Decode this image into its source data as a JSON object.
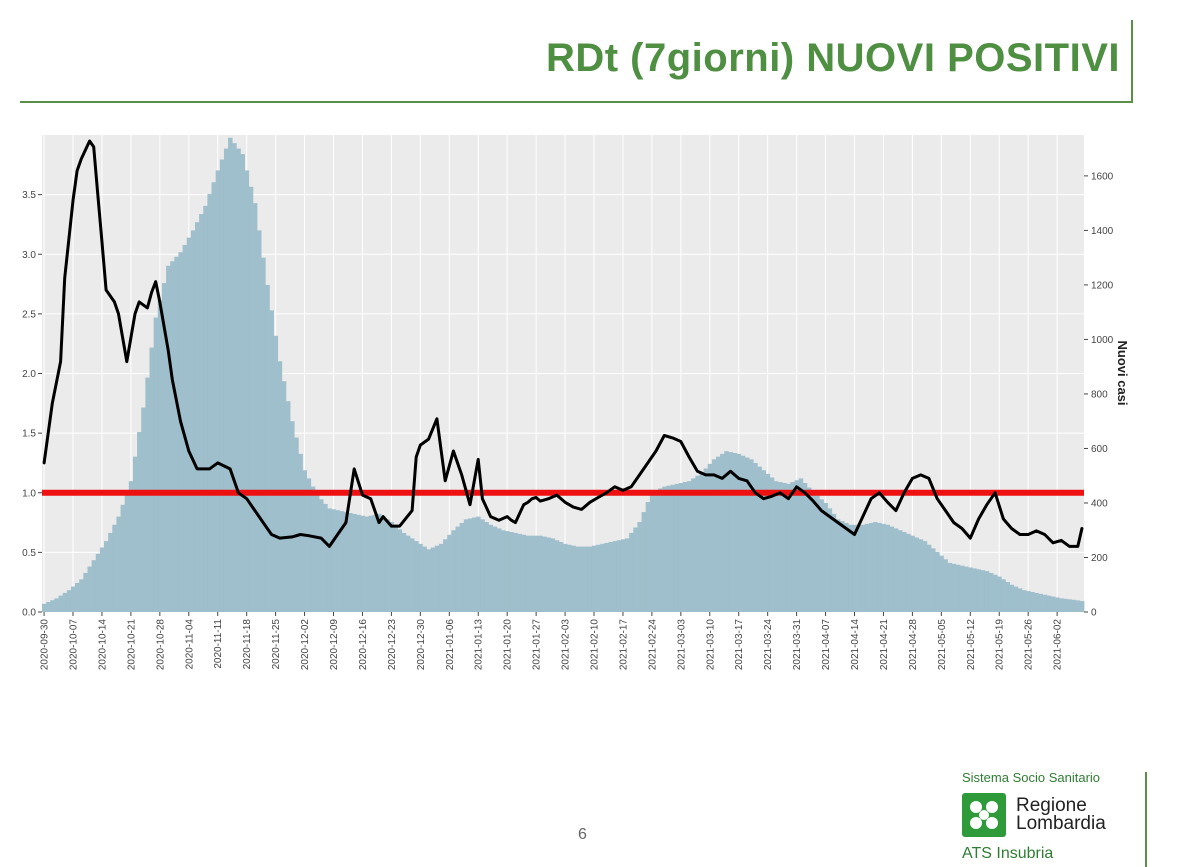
{
  "slide": {
    "title": "RDt (7giorni) NUOVI POSITIVI",
    "page_number": "6"
  },
  "branding": {
    "system": "Sistema Socio Sanitario",
    "region_line1": "Regione",
    "region_line2": "Lombardia",
    "agency": "ATS Insubria"
  },
  "colors": {
    "title": "#4e8f42",
    "bars": "#9ebfcb",
    "plot_bg": "#ebebeb",
    "line": "#000000",
    "threshold": "#ee1111"
  },
  "chart_data": {
    "type": "bar+line",
    "title": "",
    "xlabel": "",
    "ylabel_left": "",
    "ylabel_right": "Nuovi casi",
    "x_tick_labels": [
      "2020-09-30",
      "2020-10-07",
      "2020-10-14",
      "2020-10-21",
      "2020-10-28",
      "2020-11-04",
      "2020-11-11",
      "2020-11-18",
      "2020-11-25",
      "2020-12-02",
      "2020-12-09",
      "2020-12-16",
      "2020-12-23",
      "2020-12-30",
      "2021-01-06",
      "2021-01-13",
      "2021-01-20",
      "2021-01-27",
      "2021-02-03",
      "2021-02-10",
      "2021-02-17",
      "2021-02-24",
      "2021-03-03",
      "2021-03-10",
      "2021-03-17",
      "2021-03-24",
      "2021-03-31",
      "2021-04-07",
      "2021-04-14",
      "2021-04-21",
      "2021-04-28",
      "2021-05-05",
      "2021-05-12",
      "2021-05-19",
      "2021-05-26",
      "2021-06-02"
    ],
    "x_start": "2020-09-30",
    "ylim_left": [
      0,
      4
    ],
    "left_ticks": [
      "0.0",
      "0.5",
      "1.0",
      "1.5",
      "2.0",
      "2.5",
      "3.0",
      "3.5"
    ],
    "ylim_right": [
      0,
      1750
    ],
    "right_ticks": [
      "0",
      "200",
      "400",
      "600",
      "800",
      "1000",
      "1200",
      "1400",
      "1600"
    ],
    "threshold": 1.0,
    "grid": true,
    "new_cases_series": {
      "name": "Nuovi casi",
      "axis": "right",
      "days": [
        0,
        3,
        6,
        9,
        12,
        15,
        18,
        21,
        24,
        27,
        30,
        33,
        36,
        39,
        42,
        45,
        48,
        51,
        54,
        57,
        60,
        63,
        66,
        69,
        72,
        75,
        78,
        81,
        84,
        87,
        90,
        93,
        96,
        99,
        102,
        105,
        108,
        111,
        114,
        117,
        120,
        123,
        126,
        129,
        132,
        135,
        138,
        141,
        144,
        147,
        150,
        153,
        156,
        159,
        162,
        165,
        168,
        171,
        174,
        177,
        180,
        183,
        186,
        189,
        192,
        195,
        198,
        201,
        204,
        207,
        210,
        213,
        216,
        219,
        222,
        225,
        228,
        231,
        234,
        237,
        240,
        243,
        246,
        249,
        251
      ],
      "values": [
        30,
        50,
        80,
        120,
        190,
        260,
        350,
        480,
        750,
        1080,
        1270,
        1320,
        1400,
        1490,
        1620,
        1740,
        1680,
        1500,
        1200,
        920,
        700,
        520,
        430,
        380,
        370,
        360,
        350,
        360,
        330,
        290,
        260,
        230,
        250,
        300,
        340,
        350,
        320,
        300,
        290,
        280,
        280,
        270,
        250,
        240,
        240,
        250,
        260,
        270,
        330,
        440,
        460,
        470,
        480,
        510,
        560,
        590,
        580,
        560,
        520,
        480,
        470,
        490,
        440,
        400,
        340,
        320,
        320,
        330,
        320,
        300,
        280,
        260,
        220,
        180,
        170,
        160,
        150,
        130,
        100,
        80,
        70,
        60,
        50,
        45,
        40
      ]
    },
    "rt_series": {
      "name": "RDt (7giorni)",
      "axis": "left",
      "days": [
        0,
        2,
        4,
        5,
        7,
        8,
        9,
        11,
        12,
        13,
        14,
        15,
        17,
        18,
        20,
        21,
        22,
        23,
        25,
        26,
        27,
        28,
        30,
        31,
        33,
        35,
        37,
        40,
        42,
        45,
        47,
        49,
        51,
        53,
        55,
        57,
        60,
        62,
        64,
        67,
        69,
        71,
        73,
        75,
        77,
        79,
        81,
        82,
        84,
        86,
        89,
        90,
        91,
        93,
        95,
        97,
        99,
        101,
        103,
        105,
        106,
        108,
        110,
        112,
        113,
        114,
        116,
        117,
        118,
        119,
        120,
        121,
        122,
        124,
        126,
        127,
        128,
        130,
        132,
        134,
        136,
        138,
        140,
        142,
        144,
        146,
        148,
        150,
        152,
        154,
        156,
        158,
        160,
        162,
        164,
        166,
        168,
        170,
        172,
        174,
        176,
        178,
        180,
        182,
        184,
        186,
        188,
        190,
        192,
        194,
        196,
        198,
        200,
        202,
        204,
        206,
        208,
        210,
        212,
        214,
        216,
        218,
        220,
        222,
        224,
        226,
        228,
        230,
        232,
        234,
        236,
        238,
        240,
        242,
        244,
        246,
        248,
        250,
        251
      ],
      "values": [
        1.25,
        1.75,
        2.1,
        2.8,
        3.45,
        3.7,
        3.8,
        3.95,
        3.9,
        3.5,
        3.1,
        2.7,
        2.6,
        2.5,
        2.1,
        2.3,
        2.5,
        2.6,
        2.55,
        2.68,
        2.77,
        2.6,
        2.2,
        1.95,
        1.6,
        1.35,
        1.2,
        1.2,
        1.25,
        1.2,
        1.0,
        0.95,
        0.85,
        0.75,
        0.65,
        0.62,
        0.63,
        0.65,
        0.64,
        0.62,
        0.55,
        0.65,
        0.75,
        1.2,
        0.98,
        0.95,
        0.75,
        0.8,
        0.72,
        0.72,
        0.85,
        1.3,
        1.4,
        1.45,
        1.62,
        1.1,
        1.35,
        1.15,
        0.9,
        1.28,
        0.95,
        0.8,
        0.77,
        0.8,
        0.77,
        0.75,
        0.9,
        0.92,
        0.95,
        0.96,
        0.93,
        0.94,
        0.95,
        0.98,
        0.92,
        0.9,
        0.88,
        0.86,
        0.92,
        0.96,
        1.0,
        1.05,
        1.02,
        1.05,
        1.15,
        1.25,
        1.35,
        1.48,
        1.46,
        1.43,
        1.3,
        1.18,
        1.15,
        1.15,
        1.12,
        1.18,
        1.12,
        1.1,
        1.0,
        0.95,
        0.97,
        1.0,
        0.95,
        1.05,
        1.0,
        0.93,
        0.85,
        0.8,
        0.75,
        0.7,
        0.65,
        0.8,
        0.95,
        1.0,
        0.92,
        0.85,
        1.0,
        1.12,
        1.15,
        1.12,
        0.95,
        0.85,
        0.75,
        0.7,
        0.62,
        0.78,
        0.9,
        1.0,
        0.78,
        0.7,
        0.65,
        0.65,
        0.68,
        0.65,
        0.58,
        0.6,
        0.55,
        0.55,
        0.7
      ]
    }
  }
}
